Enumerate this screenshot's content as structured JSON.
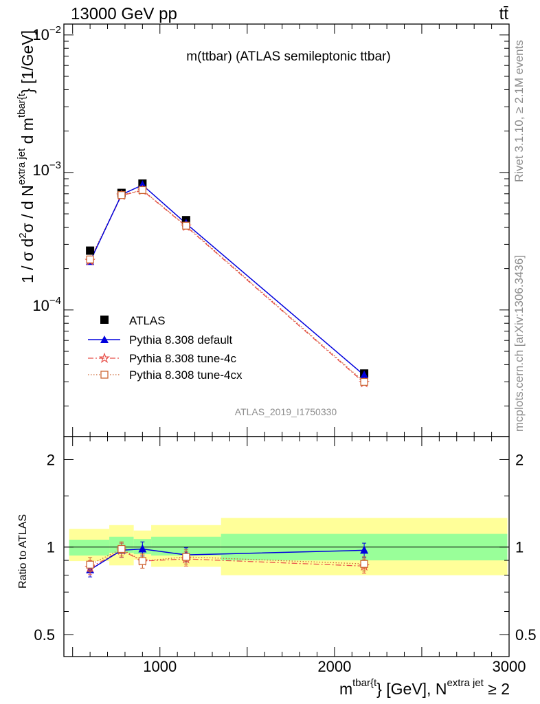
{
  "header": {
    "left": "13000 GeV pp",
    "right": "tt̄"
  },
  "side_labels": {
    "rivet": "Rivet 3.1.10, ≥ 2.1M events",
    "mcplots": "mcplots.cern.ch [arXiv:1306.3436]"
  },
  "colors": {
    "data": "#000000",
    "default": "#0000dd",
    "tune4c": "#e8504a",
    "tune4cx": "#cc6633",
    "band_inner": "#99ff99",
    "band_outer": "#ffff99"
  },
  "chart_data": [
    {
      "type": "scatter",
      "title": "m(ttbar) (ATLAS semileptonic ttbar)",
      "ylabel": "1 / σ d²σ / d N^{extra jet} d m^{tbar{t}} [1/GeV]",
      "yscale": "log",
      "ylim": [
        1.2e-05,
        0.012
      ],
      "xlim": [
        450,
        3000
      ],
      "ytick_labels": [
        "10^{-2}",
        "10^{-3}",
        "10^{-4}"
      ],
      "watermark": "ATLAS_2019_I1750330",
      "legend_position": "middle-left",
      "x": [
        600,
        780,
        900,
        1150,
        2170
      ],
      "series": [
        {
          "name": "ATLAS",
          "marker": "square",
          "values": [
            0.00027,
            0.00071,
            0.00083,
            0.00045,
            3.45e-05
          ]
        },
        {
          "name": "Pythia 8.308 default",
          "marker": "triangle",
          "line": "solid",
          "values": [
            0.000225,
            0.00069,
            0.00081,
            0.000425,
            3.35e-05
          ]
        },
        {
          "name": "Pythia 8.308 tune-4c",
          "marker": "star",
          "line": "dashdot",
          "values": [
            0.000228,
            0.00068,
            0.00074,
            0.000405,
            2.95e-05
          ]
        },
        {
          "name": "Pythia 8.308 tune-4cx",
          "marker": "open-square",
          "line": "dotted",
          "values": [
            0.000233,
            0.000685,
            0.000745,
            0.00041,
            3e-05
          ]
        }
      ]
    },
    {
      "type": "line",
      "ylabel": "Ratio to ATLAS",
      "xlabel": "m^{tbar{t}} [GeV], N^{extra jet} ≥ 2",
      "xlim": [
        450,
        3000
      ],
      "ylim": [
        0.42,
        2.4
      ],
      "yscale": "log",
      "x_ticks": [
        1000,
        2000,
        3000
      ],
      "y_ticks": [
        0.5,
        1,
        2
      ],
      "x": [
        600,
        780,
        900,
        1150,
        2170
      ],
      "bins": [
        {
          "x0": 480,
          "x1": 710,
          "inner": [
            0.935,
            1.06
          ],
          "outer": [
            0.895,
            1.155
          ]
        },
        {
          "x0": 710,
          "x1": 850,
          "inner": [
            0.955,
            1.085
          ],
          "outer": [
            0.865,
            1.19
          ]
        },
        {
          "x0": 850,
          "x1": 950,
          "inner": [
            0.945,
            1.065
          ],
          "outer": [
            0.905,
            1.14
          ]
        },
        {
          "x0": 950,
          "x1": 1350,
          "inner": [
            0.935,
            1.085
          ],
          "outer": [
            0.855,
            1.19
          ]
        },
        {
          "x0": 1350,
          "x1": 2990,
          "inner": [
            0.9,
            1.11
          ],
          "outer": [
            0.8,
            1.26
          ]
        }
      ],
      "series": [
        {
          "name": "Pythia 8.308 default",
          "values": [
            0.835,
            0.975,
            0.985,
            0.94,
            0.975
          ]
        },
        {
          "name": "Pythia 8.308 tune-4c",
          "values": [
            0.85,
            0.975,
            0.895,
            0.91,
            0.86
          ]
        },
        {
          "name": "Pythia 8.308 tune-4cx",
          "values": [
            0.87,
            0.985,
            0.895,
            0.925,
            0.875
          ]
        }
      ]
    }
  ]
}
